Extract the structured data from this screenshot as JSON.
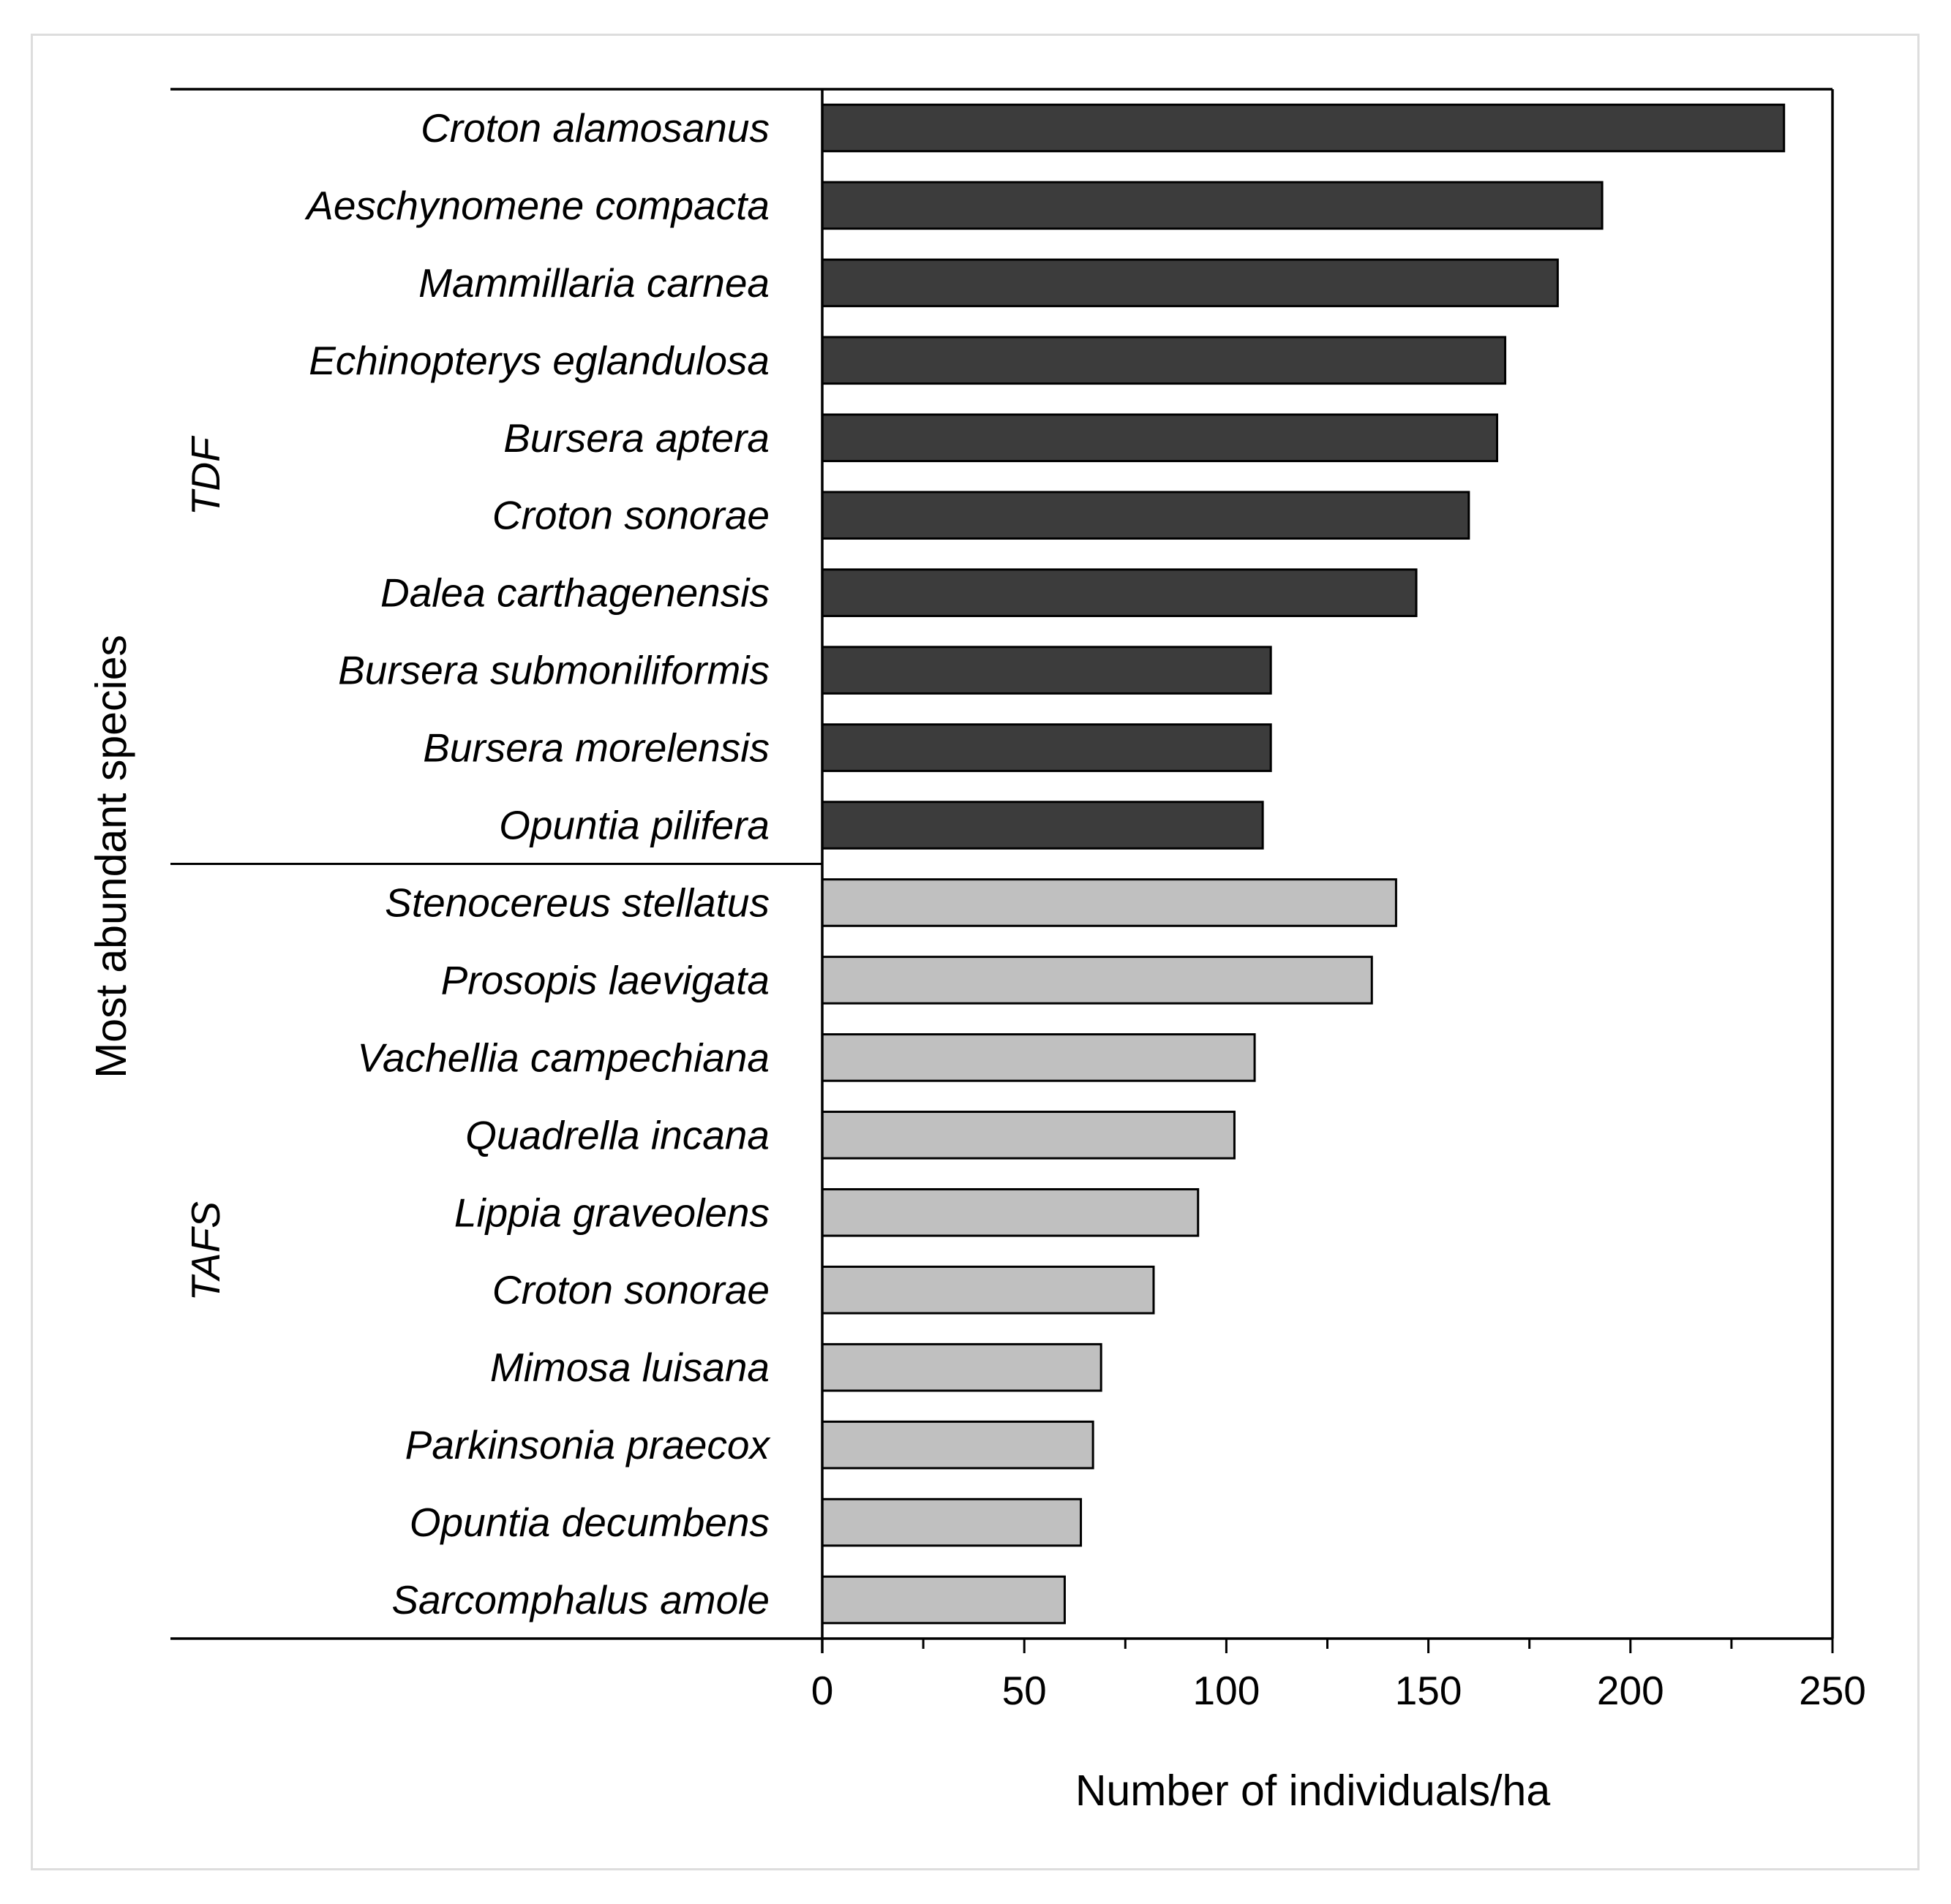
{
  "chart_data": {
    "type": "bar",
    "orientation": "horizontal",
    "title": "",
    "xlabel": "Number of individuals/ha",
    "ylabel": "Most abundant species",
    "xlim": [
      0,
      250
    ],
    "x_ticks": [
      0,
      50,
      100,
      150,
      200,
      250
    ],
    "grid": false,
    "colors": {
      "TDF": "#3c3c3c",
      "TAFS": "#c0c0c0",
      "outline": "#000000"
    },
    "groups": [
      {
        "name": "TDF",
        "categories": [
          "Croton alamosanus",
          "Aeschynomene compacta",
          "Mammillaria carnea",
          "Echinopterys eglandulosa",
          "Bursera aptera",
          "Croton sonorae",
          "Dalea carthagenensis",
          "Bursera submoniliformis",
          "Bursera morelensis",
          "Opuntia pilifera"
        ],
        "values": [
          238,
          193,
          182,
          169,
          167,
          160,
          147,
          111,
          111,
          109
        ]
      },
      {
        "name": "TAFS",
        "categories": [
          "Stenocereus stellatus",
          "Prosopis laevigata",
          "Vachellia campechiana",
          "Quadrella incana",
          "Lippia graveolens",
          "Croton sonorae",
          "Mimosa luisana",
          "Parkinsonia praecox",
          "Opuntia decumbens",
          "Sarcomphalus amole"
        ],
        "values": [
          142,
          136,
          107,
          102,
          93,
          82,
          69,
          67,
          64,
          60
        ]
      }
    ]
  }
}
